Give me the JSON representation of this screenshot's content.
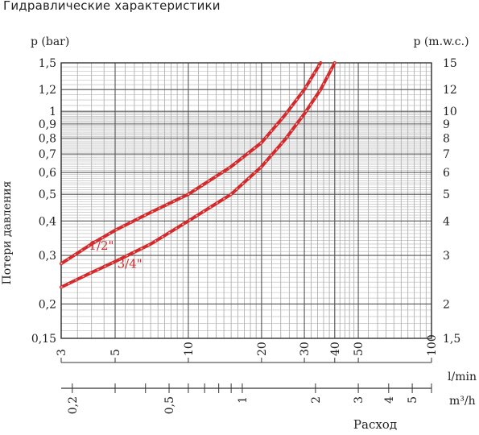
{
  "header": {
    "title": "Гидравлические характеристики"
  },
  "chart_data": {
    "type": "line",
    "title": "Гидравлические характеристики",
    "ylabel": "Потери давления",
    "xlabel": "Расход",
    "y_left_unit": "p (bar)",
    "y_right_unit": "p (m.w.c.)",
    "x_top_unit": "l/min",
    "x_bottom_unit": "m³/h",
    "x_scale": "log",
    "y_scale": "log",
    "xlim": [
      3,
      100
    ],
    "ylim": [
      0.15,
      1.5
    ],
    "grid": true,
    "y_left_ticks": [
      {
        "v": 0.15,
        "label": "0,15"
      },
      {
        "v": 0.2,
        "label": "0,2"
      },
      {
        "v": 0.3,
        "label": "0,3"
      },
      {
        "v": 0.4,
        "label": "0,4"
      },
      {
        "v": 0.5,
        "label": "0,5"
      },
      {
        "v": 0.6,
        "label": "0,6"
      },
      {
        "v": 0.7,
        "label": "0,7"
      },
      {
        "v": 0.8,
        "label": "0,8"
      },
      {
        "v": 0.9,
        "label": "0,9"
      },
      {
        "v": 1,
        "label": "1"
      },
      {
        "v": 1.2,
        "label": "1,2"
      },
      {
        "v": 1.5,
        "label": "1,5"
      }
    ],
    "y_right_ticks": [
      {
        "v": 0.15,
        "label": "1,5"
      },
      {
        "v": 0.2,
        "label": "2"
      },
      {
        "v": 0.3,
        "label": "3"
      },
      {
        "v": 0.4,
        "label": "4"
      },
      {
        "v": 0.5,
        "label": "5"
      },
      {
        "v": 0.6,
        "label": "6"
      },
      {
        "v": 0.7,
        "label": "7"
      },
      {
        "v": 0.8,
        "label": "8"
      },
      {
        "v": 0.9,
        "label": "9"
      },
      {
        "v": 1,
        "label": "10"
      },
      {
        "v": 1.2,
        "label": "12"
      },
      {
        "v": 1.5,
        "label": "15"
      }
    ],
    "x_top_ticks": [
      {
        "v": 3,
        "label": "3"
      },
      {
        "v": 5,
        "label": "5"
      },
      {
        "v": 10,
        "label": "10"
      },
      {
        "v": 20,
        "label": "20"
      },
      {
        "v": 30,
        "label": "30"
      },
      {
        "v": 40,
        "label": "40"
      },
      {
        "v": 50,
        "label": "50"
      },
      {
        "v": 100,
        "label": "100"
      }
    ],
    "x_bottom_ticks": [
      {
        "v": 0.2,
        "label": "0,2"
      },
      {
        "v": 0.5,
        "label": "0,5"
      },
      {
        "v": 1,
        "label": "1"
      },
      {
        "v": 2,
        "label": "2"
      },
      {
        "v": 3,
        "label": "3"
      },
      {
        "v": 4,
        "label": "4"
      },
      {
        "v": 5,
        "label": "5"
      }
    ],
    "series": [
      {
        "name": "1/2\"",
        "color": "#d42a2c",
        "points": [
          [
            3,
            0.28
          ],
          [
            4,
            0.33
          ],
          [
            5,
            0.37
          ],
          [
            7,
            0.43
          ],
          [
            10,
            0.5
          ],
          [
            15,
            0.63
          ],
          [
            20,
            0.77
          ],
          [
            25,
            0.97
          ],
          [
            30,
            1.2
          ],
          [
            35,
            1.53
          ]
        ]
      },
      {
        "name": "3/4\"",
        "color": "#d42a2c",
        "points": [
          [
            3,
            0.23
          ],
          [
            4,
            0.26
          ],
          [
            5,
            0.285
          ],
          [
            7,
            0.33
          ],
          [
            10,
            0.4
          ],
          [
            15,
            0.5
          ],
          [
            20,
            0.63
          ],
          [
            25,
            0.79
          ],
          [
            30,
            0.98
          ],
          [
            35,
            1.2
          ],
          [
            40,
            1.53
          ]
        ]
      }
    ]
  }
}
